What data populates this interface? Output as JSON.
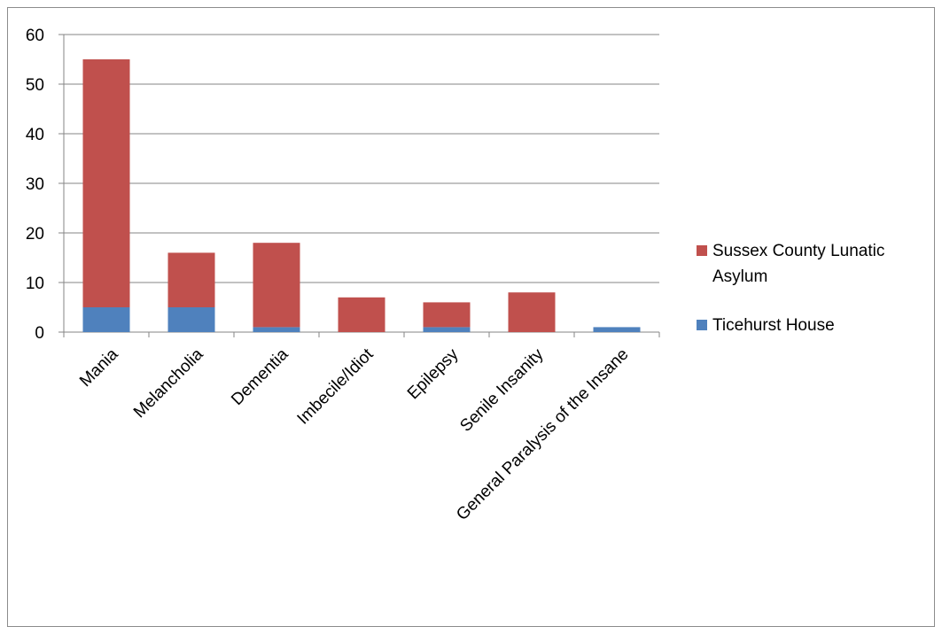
{
  "chart_data": {
    "type": "bar",
    "stacked": true,
    "categories": [
      "Mania",
      "Melancholia",
      "Dementia",
      "Imbecile/Idiot",
      "Epilepsy",
      "Senile Insanity",
      "General Paralysis of the Insane"
    ],
    "series": [
      {
        "name": "Ticehurst House",
        "color": "#4f81bd",
        "values": [
          5,
          5,
          1,
          0,
          1,
          0,
          1
        ]
      },
      {
        "name": "Sussex County Lunatic Asylum",
        "color": "#c0504d",
        "values": [
          50,
          11,
          17,
          7,
          5,
          8,
          0
        ]
      }
    ],
    "ylim": [
      0,
      60
    ],
    "yticks": [
      0,
      10,
      20,
      30,
      40,
      50,
      60
    ],
    "grid": true,
    "legend_position": "right",
    "legend_entries": [
      {
        "series": 1,
        "lines": [
          "Sussex County Lunatic",
          "Asylum"
        ]
      },
      {
        "series": 0,
        "lines": [
          "Ticehurst House"
        ]
      }
    ]
  }
}
